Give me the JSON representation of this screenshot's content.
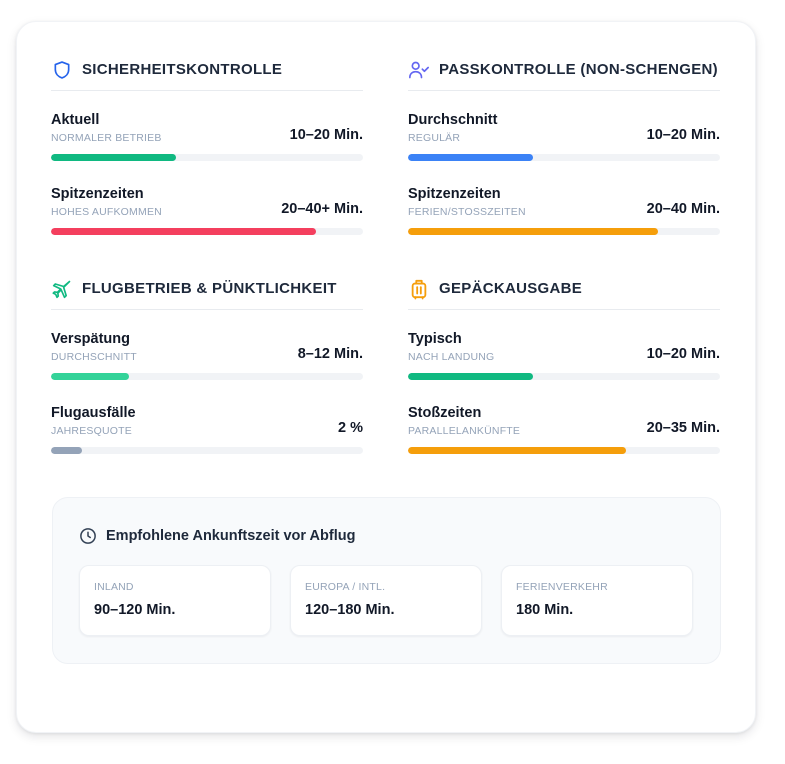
{
  "sections": [
    {
      "title": "SICHERHEITSKONTROLLE",
      "icon": "shield-icon",
      "icon_color": "#2563eb",
      "metrics": [
        {
          "label": "Aktuell",
          "sub": "NORMALER BETRIEB",
          "value": "10–20 Min.",
          "progress": 0.4,
          "color": "#10b981"
        },
        {
          "label": "Spitzenzeiten",
          "sub": "HOHES AUFKOMMEN",
          "value": "20–40+ Min.",
          "progress": 0.85,
          "color": "#f43f5e"
        }
      ]
    },
    {
      "title": "PASSKONTROLLE (NON-SCHENGEN)",
      "icon": "user-check-icon",
      "icon_color": "#6366f1",
      "metrics": [
        {
          "label": "Durchschnitt",
          "sub": "REGULÄR",
          "value": "10–20 Min.",
          "progress": 0.4,
          "color": "#3b82f6"
        },
        {
          "label": "Spitzenzeiten",
          "sub": "FERIEN/STOSSZEITEN",
          "value": "20–40 Min.",
          "progress": 0.8,
          "color": "#f59e0b"
        }
      ]
    },
    {
      "title": "FLUGBETRIEB & PÜNKTLICHKEIT",
      "icon": "plane-icon",
      "icon_color": "#10b981",
      "metrics": [
        {
          "label": "Verspätung",
          "sub": "DURCHSCHNITT",
          "value": "8–12 Min.",
          "progress": 0.25,
          "color": "#34d399"
        },
        {
          "label": "Flugausfälle",
          "sub": "JAHRESQUOTE",
          "value": "2 %",
          "progress": 0.1,
          "color": "#94a3b8"
        }
      ]
    },
    {
      "title": "GEPÄCKAUSGABE",
      "icon": "luggage-icon",
      "icon_color": "#f59e0b",
      "metrics": [
        {
          "label": "Typisch",
          "sub": "NACH LANDUNG",
          "value": "10–20 Min.",
          "progress": 0.4,
          "color": "#10b981"
        },
        {
          "label": "Stoßzeiten",
          "sub": "PARALLELANKÜNFTE",
          "value": "20–35 Min.",
          "progress": 0.7,
          "color": "#f59e0b"
        }
      ]
    }
  ],
  "recommendation": {
    "title": "Empfohlene Ankunftszeit vor Abflug",
    "icon": "clock-icon",
    "items": [
      {
        "label": "INLAND",
        "value": "90–120 Min."
      },
      {
        "label": "EUROPA / INTL.",
        "value": "120–180 Min."
      },
      {
        "label": "FERIENVERKEHR",
        "value": "180 Min."
      }
    ]
  }
}
